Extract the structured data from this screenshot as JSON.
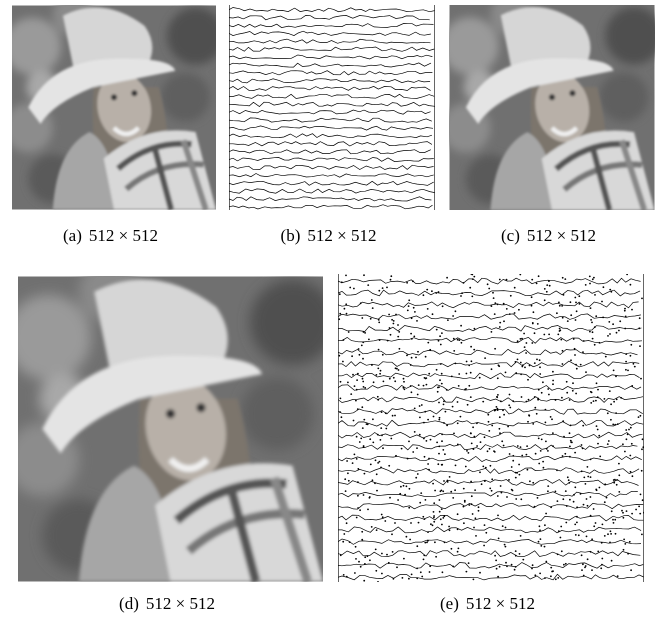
{
  "panels": [
    {
      "label": "(a)",
      "size": "512 × 512"
    },
    {
      "label": "(b)",
      "size": "512 × 512"
    },
    {
      "label": "(c)",
      "size": "512 × 512"
    },
    {
      "label": "(d)",
      "size": "512 × 512"
    },
    {
      "label": "(e)",
      "size": "512 × 512"
    }
  ]
}
